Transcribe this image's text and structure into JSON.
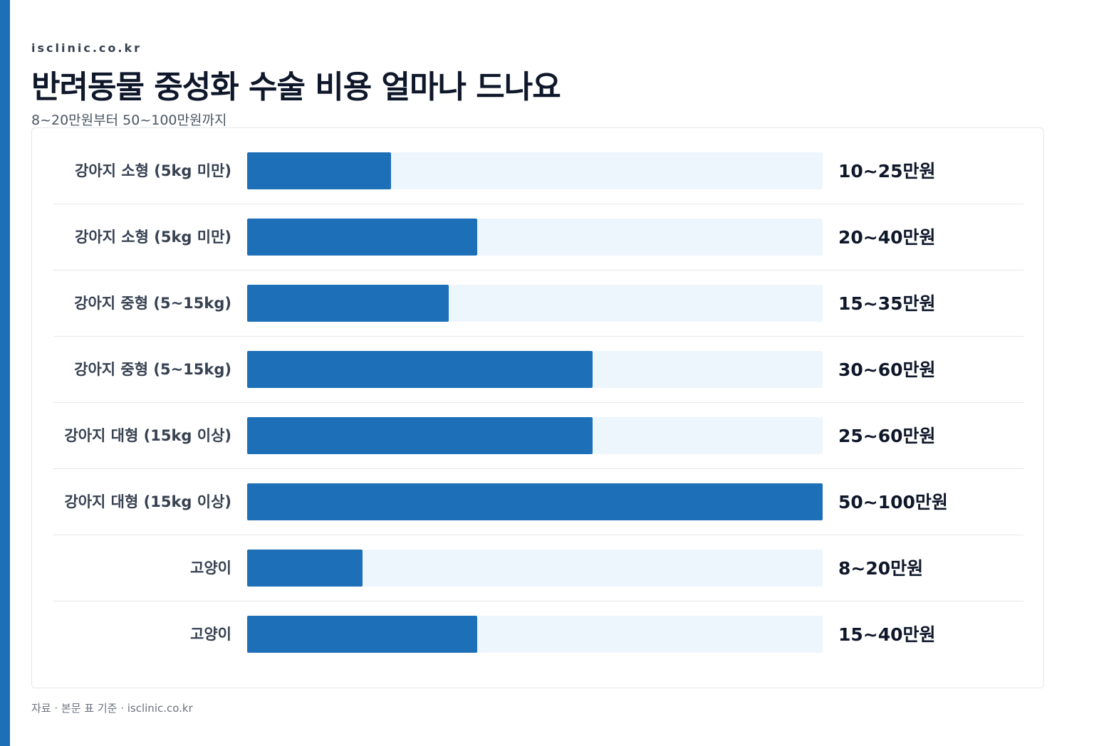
{
  "header": {
    "site": "isclinic.co.kr",
    "title": "반려동물 중성화 수술 비용 얼마나 드나요",
    "subtitle": "8~20만원부터 50~100만원까지"
  },
  "footer": {
    "source": "자료 · 본문 표 기준 · isclinic.co.kr"
  },
  "colors": {
    "accent": "#1d6fb8",
    "track": "#eef6fd",
    "text": "#0f172a"
  },
  "chart_data": {
    "type": "bar",
    "orientation": "horizontal",
    "xlim": [
      0,
      100
    ],
    "categories": [
      "강아지 소형 (5kg 미만)",
      "강아지 소형 (5kg 미만)",
      "강아지 중형 (5~15kg)",
      "강아지 중형 (5~15kg)",
      "강아지 대형 (15kg 이상)",
      "강아지 대형 (15kg 이상)",
      "고양이",
      "고양이"
    ],
    "values": [
      25,
      40,
      35,
      60,
      60,
      100,
      20,
      40
    ],
    "value_labels": [
      "10~25만원",
      "20~40만원",
      "15~35만원",
      "30~60만원",
      "25~60만원",
      "50~100만원",
      "8~20만원",
      "15~40만원"
    ],
    "grid": false,
    "legend": "none"
  }
}
